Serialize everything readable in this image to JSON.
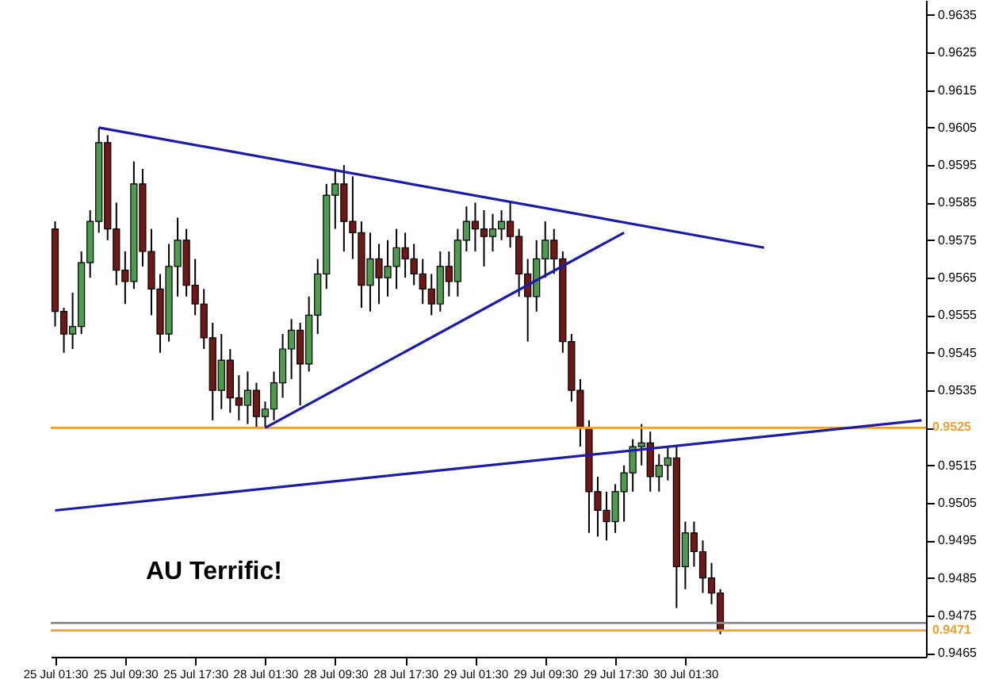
{
  "chart_data": {
    "type": "candlestick",
    "categories": [
      "25 Jul 01:30",
      null,
      null,
      null,
      null,
      null,
      null,
      null,
      "25 Jul 09:30",
      null,
      null,
      null,
      null,
      null,
      null,
      null,
      "25 Jul 17:30",
      null,
      null,
      null,
      null,
      null,
      null,
      null,
      "28 Jul 01:30",
      null,
      null,
      null,
      null,
      null,
      null,
      null,
      "28 Jul 09:30",
      null,
      null,
      null,
      null,
      null,
      null,
      null,
      "28 Jul 17:30",
      null,
      null,
      null,
      null,
      null,
      null,
      null,
      "29 Jul 01:30",
      null,
      null,
      null,
      null,
      null,
      null,
      null,
      "29 Jul 09:30",
      null,
      null,
      null,
      null,
      null,
      null,
      null,
      "29 Jul 17:30",
      null,
      null,
      null,
      null,
      null,
      null,
      null,
      "30 Jul 01:30",
      null,
      null,
      null,
      null,
      null,
      null,
      null,
      null,
      null,
      null,
      null,
      null,
      null,
      null,
      null,
      null,
      null,
      null,
      null,
      null,
      null,
      null,
      null,
      null,
      null,
      null,
      null
    ],
    "ohlc": [
      [
        0.9578,
        0.958,
        0.9552,
        0.9556
      ],
      [
        0.9556,
        0.9557,
        0.9545,
        0.955
      ],
      [
        0.955,
        0.9561,
        0.9546,
        0.9552
      ],
      [
        0.9552,
        0.9572,
        0.955,
        0.9569
      ],
      [
        0.9569,
        0.9583,
        0.9565,
        0.958
      ],
      [
        0.958,
        0.9605,
        0.9577,
        0.9601
      ],
      [
        0.9601,
        0.9603,
        0.9575,
        0.9578
      ],
      [
        0.9578,
        0.9585,
        0.9563,
        0.9567
      ],
      [
        0.9567,
        0.9572,
        0.9558,
        0.9564
      ],
      [
        0.9564,
        0.9596,
        0.9562,
        0.959
      ],
      [
        0.959,
        0.9594,
        0.9568,
        0.9572
      ],
      [
        0.9572,
        0.9578,
        0.9555,
        0.9562
      ],
      [
        0.9562,
        0.9566,
        0.9545,
        0.955
      ],
      [
        0.955,
        0.9574,
        0.9548,
        0.9568
      ],
      [
        0.9568,
        0.9581,
        0.956,
        0.9575
      ],
      [
        0.9575,
        0.9578,
        0.956,
        0.9563
      ],
      [
        0.9563,
        0.957,
        0.9555,
        0.9558
      ],
      [
        0.9558,
        0.9562,
        0.9546,
        0.9549
      ],
      [
        0.9549,
        0.9553,
        0.9527,
        0.9535
      ],
      [
        0.9535,
        0.955,
        0.953,
        0.9543
      ],
      [
        0.9543,
        0.9546,
        0.9529,
        0.9533
      ],
      [
        0.9533,
        0.9539,
        0.9527,
        0.9531
      ],
      [
        0.9531,
        0.954,
        0.9526,
        0.9535
      ],
      [
        0.9535,
        0.9537,
        0.9525,
        0.9528
      ],
      [
        0.9528,
        0.9532,
        0.9525,
        0.953
      ],
      [
        0.953,
        0.954,
        0.9527,
        0.9537
      ],
      [
        0.9537,
        0.955,
        0.9533,
        0.9546
      ],
      [
        0.9546,
        0.9554,
        0.9538,
        0.9551
      ],
      [
        0.9551,
        0.9553,
        0.9531,
        0.9542
      ],
      [
        0.9542,
        0.956,
        0.954,
        0.9555
      ],
      [
        0.9555,
        0.957,
        0.955,
        0.9566
      ],
      [
        0.9566,
        0.959,
        0.9562,
        0.9587
      ],
      [
        0.9587,
        0.9594,
        0.9578,
        0.959
      ],
      [
        0.959,
        0.9595,
        0.9572,
        0.958
      ],
      [
        0.958,
        0.9592,
        0.957,
        0.9577
      ],
      [
        0.9577,
        0.958,
        0.9557,
        0.9563
      ],
      [
        0.9563,
        0.9577,
        0.9556,
        0.957
      ],
      [
        0.957,
        0.9574,
        0.9558,
        0.9565
      ],
      [
        0.9565,
        0.9575,
        0.956,
        0.9568
      ],
      [
        0.9568,
        0.9578,
        0.9562,
        0.9573
      ],
      [
        0.9573,
        0.9577,
        0.9565,
        0.957
      ],
      [
        0.957,
        0.9574,
        0.9563,
        0.9566
      ],
      [
        0.9566,
        0.957,
        0.9558,
        0.9562
      ],
      [
        0.9562,
        0.9566,
        0.9555,
        0.9558
      ],
      [
        0.9558,
        0.9572,
        0.9556,
        0.9568
      ],
      [
        0.9568,
        0.9572,
        0.956,
        0.9564
      ],
      [
        0.9564,
        0.9578,
        0.956,
        0.9575
      ],
      [
        0.9575,
        0.9584,
        0.9572,
        0.958
      ],
      [
        0.958,
        0.9585,
        0.9572,
        0.9578
      ],
      [
        0.9578,
        0.9583,
        0.9568,
        0.9576
      ],
      [
        0.9576,
        0.9582,
        0.9572,
        0.9578
      ],
      [
        0.9578,
        0.9583,
        0.9575,
        0.958
      ],
      [
        0.958,
        0.9585,
        0.9573,
        0.9576
      ],
      [
        0.9576,
        0.9578,
        0.956,
        0.9566
      ],
      [
        0.9566,
        0.957,
        0.9548,
        0.956
      ],
      [
        0.956,
        0.9575,
        0.9556,
        0.957
      ],
      [
        0.957,
        0.958,
        0.9565,
        0.9575
      ],
      [
        0.9575,
        0.9578,
        0.9566,
        0.957
      ],
      [
        0.957,
        0.9572,
        0.9545,
        0.9548
      ],
      [
        0.9548,
        0.955,
        0.9532,
        0.9535
      ],
      [
        0.9535,
        0.9538,
        0.952,
        0.9525
      ],
      [
        0.9525,
        0.9527,
        0.9497,
        0.9508
      ],
      [
        0.9508,
        0.9512,
        0.9496,
        0.9503
      ],
      [
        0.9503,
        0.9508,
        0.9495,
        0.95
      ],
      [
        0.95,
        0.951,
        0.9497,
        0.9508
      ],
      [
        0.9508,
        0.9515,
        0.95,
        0.9513
      ],
      [
        0.9513,
        0.9522,
        0.9508,
        0.952
      ],
      [
        0.952,
        0.9526,
        0.9515,
        0.9521
      ],
      [
        0.9521,
        0.9524,
        0.9508,
        0.9512
      ],
      [
        0.9512,
        0.9518,
        0.9508,
        0.9515
      ],
      [
        0.9515,
        0.952,
        0.9511,
        0.9517
      ],
      [
        0.9517,
        0.952,
        0.9477,
        0.9488
      ],
      [
        0.9488,
        0.95,
        0.9482,
        0.9497
      ],
      [
        0.9497,
        0.95,
        0.9488,
        0.9492
      ],
      [
        0.9492,
        0.9495,
        0.9481,
        0.9485
      ],
      [
        0.9485,
        0.9489,
        0.9478,
        0.9481
      ],
      [
        0.9481,
        0.9482,
        0.947,
        0.9471
      ],
      null,
      null,
      null,
      null,
      null,
      null,
      null,
      null,
      null,
      null,
      null,
      null,
      null,
      null,
      null,
      null,
      null,
      null,
      null,
      null,
      null,
      null,
      null
    ],
    "series": [
      {
        "type": "line",
        "color": "#1c1ca8",
        "values": [
          null,
          null,
          null,
          null,
          null,
          0.9605,
          null,
          null,
          null,
          null,
          null,
          null,
          null,
          null,
          null,
          null,
          null,
          null,
          null,
          null,
          null,
          null,
          null,
          null,
          null,
          null,
          null,
          null,
          null,
          null,
          null,
          null,
          null,
          null,
          null,
          null,
          null,
          null,
          null,
          null,
          null,
          null,
          null,
          null,
          null,
          null,
          null,
          null,
          null,
          null,
          null,
          null,
          null,
          null,
          null,
          null,
          null,
          null,
          null,
          null,
          null,
          null,
          null,
          null,
          null,
          null,
          null,
          null,
          null,
          null,
          null,
          null,
          null,
          null,
          null,
          null,
          null,
          null,
          null,
          null,
          null,
          0.9573,
          null,
          null,
          null,
          null,
          null,
          null,
          null,
          null,
          null,
          null,
          null,
          null,
          null,
          null,
          null,
          null,
          null,
          null
        ]
      },
      {
        "type": "line",
        "color": "#1c1ca8",
        "values": [
          null,
          null,
          null,
          null,
          null,
          null,
          null,
          null,
          null,
          null,
          null,
          null,
          null,
          null,
          null,
          null,
          null,
          null,
          null,
          null,
          null,
          null,
          null,
          null,
          0.9525,
          null,
          null,
          null,
          null,
          null,
          null,
          null,
          null,
          null,
          null,
          null,
          null,
          null,
          null,
          null,
          null,
          null,
          null,
          null,
          null,
          null,
          null,
          null,
          null,
          null,
          null,
          null,
          null,
          null,
          null,
          null,
          null,
          null,
          null,
          null,
          null,
          null,
          null,
          null,
          null,
          0.9577,
          null,
          null,
          null,
          null,
          null,
          null,
          null,
          null,
          null,
          null,
          null,
          null,
          null,
          null,
          null,
          null,
          null,
          null,
          null,
          null,
          null,
          null,
          null,
          null,
          null,
          null,
          null,
          null,
          null,
          null,
          null,
          null,
          null,
          null
        ]
      },
      {
        "type": "line",
        "color": "#1c1ca8",
        "values": [
          0.9503,
          null,
          null,
          null,
          null,
          null,
          null,
          null,
          null,
          null,
          null,
          null,
          null,
          null,
          null,
          null,
          null,
          null,
          null,
          null,
          null,
          null,
          null,
          null,
          null,
          null,
          null,
          null,
          null,
          null,
          null,
          null,
          null,
          null,
          null,
          null,
          null,
          null,
          null,
          null,
          null,
          null,
          null,
          null,
          null,
          null,
          null,
          null,
          null,
          null,
          null,
          null,
          null,
          null,
          null,
          null,
          null,
          null,
          null,
          null,
          null,
          null,
          null,
          null,
          null,
          null,
          null,
          null,
          null,
          null,
          null,
          null,
          null,
          null,
          null,
          null,
          null,
          null,
          null,
          null,
          null,
          null,
          null,
          null,
          null,
          null,
          null,
          null,
          null,
          null,
          null,
          null,
          null,
          null,
          null,
          null,
          null,
          null,
          null,
          0.9527
        ]
      }
    ],
    "ylim": [
      0.9464,
      0.9639
    ],
    "yticks": [
      0.9465,
      0.9475,
      0.9485,
      0.9495,
      0.9505,
      0.9515,
      {
        "value": 0.9525,
        "label": null
      },
      0.9535,
      0.9545,
      0.9555,
      0.9565,
      0.9575,
      0.9585,
      0.9595,
      0.9605,
      0.9615,
      0.9625,
      0.9635
    ],
    "ref_lines": [
      {
        "axis": "y",
        "value": 0.9525,
        "label": "0.9525",
        "color": "#f0a030"
      },
      {
        "axis": "y",
        "value": 0.9473,
        "color": "#8c8c8c"
      },
      {
        "axis": "y",
        "value": 0.9471,
        "label": "0.9471",
        "color": "#f0a030"
      }
    ],
    "annotations": [
      "AU Terrific!"
    ]
  }
}
